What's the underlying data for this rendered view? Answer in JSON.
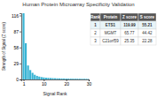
{
  "chart_data": {
    "type": "bar",
    "title": "Human Protein Microarray Specificity Validation",
    "xlabel": "Signal Rank",
    "ylabel": "Strength of Signal (Z score)",
    "x": [
      1,
      2,
      3,
      4,
      5,
      6,
      7,
      8,
      9,
      10,
      11,
      12,
      13,
      14,
      15,
      16,
      17,
      18,
      19,
      20,
      21,
      22,
      23,
      24,
      25,
      26,
      27,
      28,
      29,
      30
    ],
    "values": [
      119.99,
      65.77,
      25.35,
      17.0,
      12.0,
      8.5,
      6.5,
      5.2,
      4.3,
      3.7,
      3.2,
      2.9,
      2.6,
      2.4,
      2.2,
      2.0,
      1.9,
      1.8,
      1.7,
      1.6,
      1.5,
      1.45,
      1.4,
      1.35,
      1.3,
      1.25,
      1.2,
      1.15,
      1.1,
      1.05
    ],
    "color": "#39b4d4",
    "xlim": [
      0,
      30
    ],
    "ylim": [
      0,
      120
    ],
    "xticks": [
      1,
      10,
      20,
      30
    ],
    "yticks": [
      0,
      29,
      58,
      87,
      116
    ],
    "grid": false,
    "table": {
      "header": [
        "Rank",
        "Protein",
        "Z score",
        "S score"
      ],
      "rows": [
        [
          "1",
          "ETS1",
          "119.99",
          "55.21"
        ],
        [
          "2",
          "MGMT",
          "65.77",
          "44.42"
        ],
        [
          "3",
          "C21orf59",
          "25.35",
          "22.28"
        ]
      ]
    }
  }
}
